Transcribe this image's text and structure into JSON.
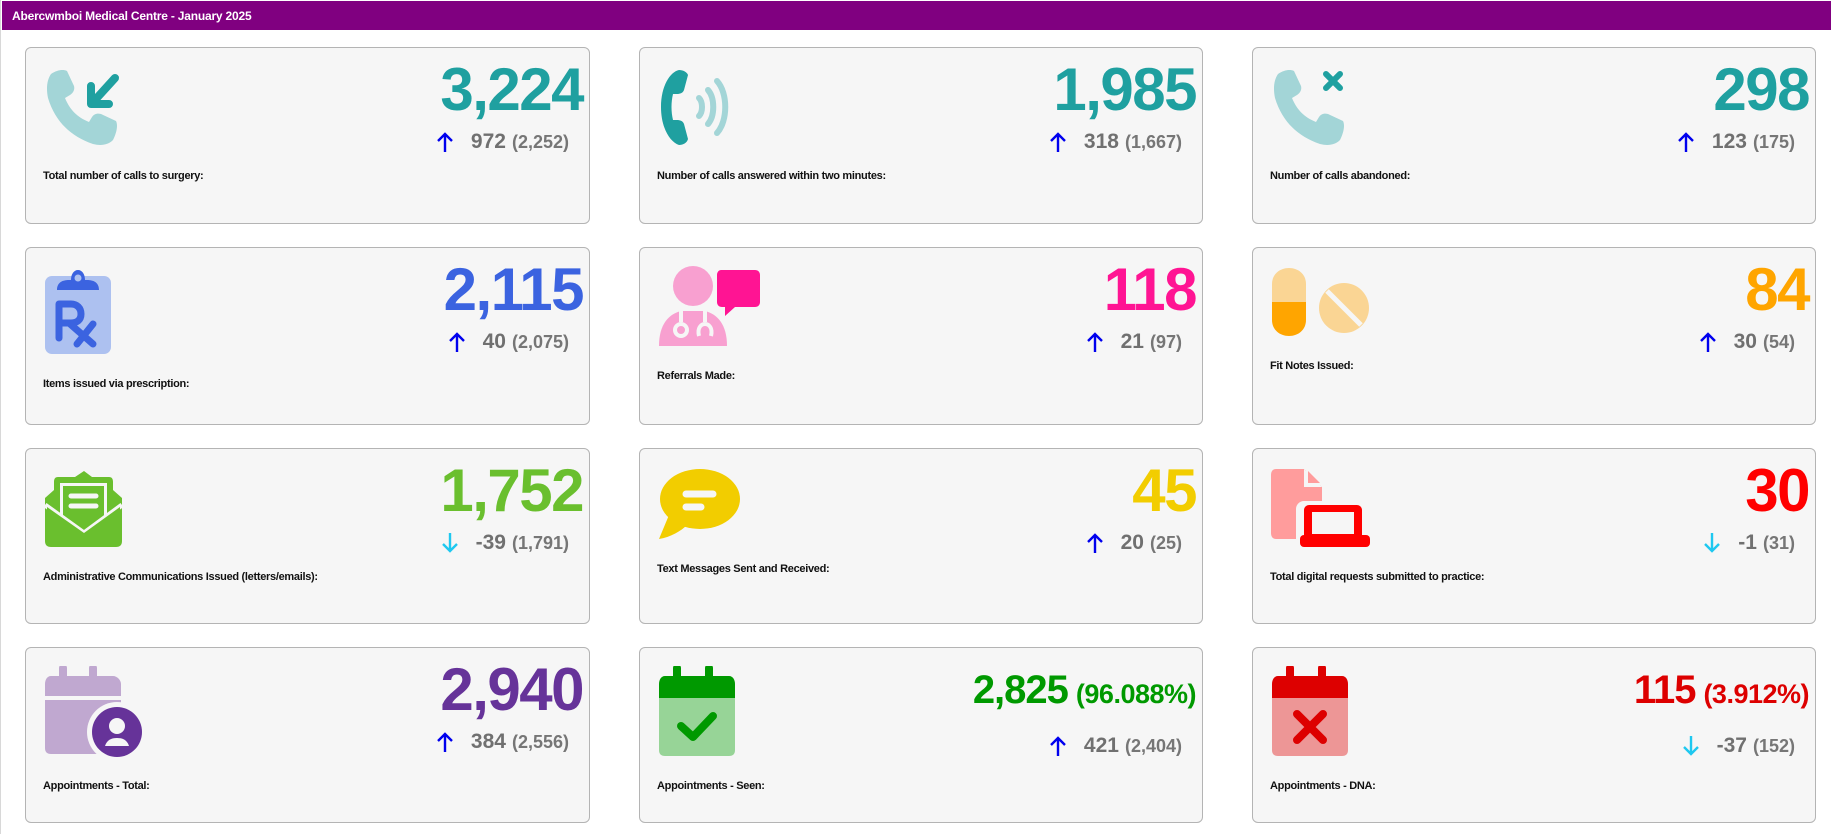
{
  "header": {
    "title": "Abercwmboi Medical Centre - January 2025"
  },
  "colors": {
    "titlebar": "#800080",
    "up_arrow": "#0000ee",
    "down_arrow": "#1ec8f0",
    "change_text": "#707070"
  },
  "cards": [
    {
      "id": "calls-total",
      "icon": "incoming-call-icon",
      "value": "3,224",
      "percent": "",
      "direction": "up",
      "change": "972",
      "previous": "(2,252)",
      "label": "Total number of calls to surgery:",
      "color": "#1fa0a0"
    },
    {
      "id": "calls-answered",
      "icon": "phone-ringing-icon",
      "value": "1,985",
      "percent": "",
      "direction": "up",
      "change": "318",
      "previous": "(1,667)",
      "label": "Number of calls answered within two minutes:",
      "color": "#1fa0a0"
    },
    {
      "id": "calls-abandoned",
      "icon": "missed-call-icon",
      "value": "298",
      "percent": "",
      "direction": "up",
      "change": "123",
      "previous": "(175)",
      "label": "Number of calls abandoned:",
      "color": "#1fa0a0"
    },
    {
      "id": "prescriptions",
      "icon": "prescription-clipboard-icon",
      "value": "2,115",
      "percent": "",
      "direction": "up",
      "change": "40",
      "previous": "(2,075)",
      "label": "Items issued via prescription:",
      "color": "#3b63e0"
    },
    {
      "id": "referrals",
      "icon": "doctor-chat-icon",
      "value": "118",
      "percent": "",
      "direction": "up",
      "change": "21",
      "previous": "(97)",
      "label": "Referrals Made:",
      "color": "#ff1493"
    },
    {
      "id": "fit-notes",
      "icon": "pills-icon",
      "value": "84",
      "percent": "",
      "direction": "up",
      "change": "30",
      "previous": "(54)",
      "label": "Fit Notes Issued:",
      "color": "#ffa500"
    },
    {
      "id": "admin-comms",
      "icon": "open-envelope-icon",
      "value": "1,752",
      "percent": "",
      "direction": "down",
      "change": "-39",
      "previous": "(1,791)",
      "label": "Administrative Communications Issued (letters/emails):",
      "color": "#6abf2e"
    },
    {
      "id": "text-messages",
      "icon": "speech-bubble-icon",
      "value": "45",
      "percent": "",
      "direction": "up",
      "change": "20",
      "previous": "(25)",
      "label": "Text Messages Sent and Received:",
      "color": "#f2cd00"
    },
    {
      "id": "digital-requests",
      "icon": "document-laptop-icon",
      "value": "30",
      "percent": "",
      "direction": "down",
      "change": "-1",
      "previous": "(31)",
      "label": "Total digital requests submitted to practice:",
      "color": "#ff0000"
    },
    {
      "id": "appointments-total",
      "icon": "calendar-user-icon",
      "value": "2,940",
      "percent": "",
      "direction": "up",
      "change": "384",
      "previous": "(2,556)",
      "label": "Appointments - Total:",
      "color": "#663399"
    },
    {
      "id": "appointments-seen",
      "icon": "calendar-check-icon",
      "value": "2,825",
      "percent": "(96.088%)",
      "direction": "up",
      "change": "421",
      "previous": "(2,404)",
      "label": "Appointments - Seen:",
      "color": "#009900"
    },
    {
      "id": "appointments-dna",
      "icon": "calendar-cross-icon",
      "value": "115",
      "percent": "(3.912%)",
      "direction": "down",
      "change": "-37",
      "previous": "(152)",
      "label": "Appointments - DNA:",
      "color": "#dd0000"
    }
  ]
}
